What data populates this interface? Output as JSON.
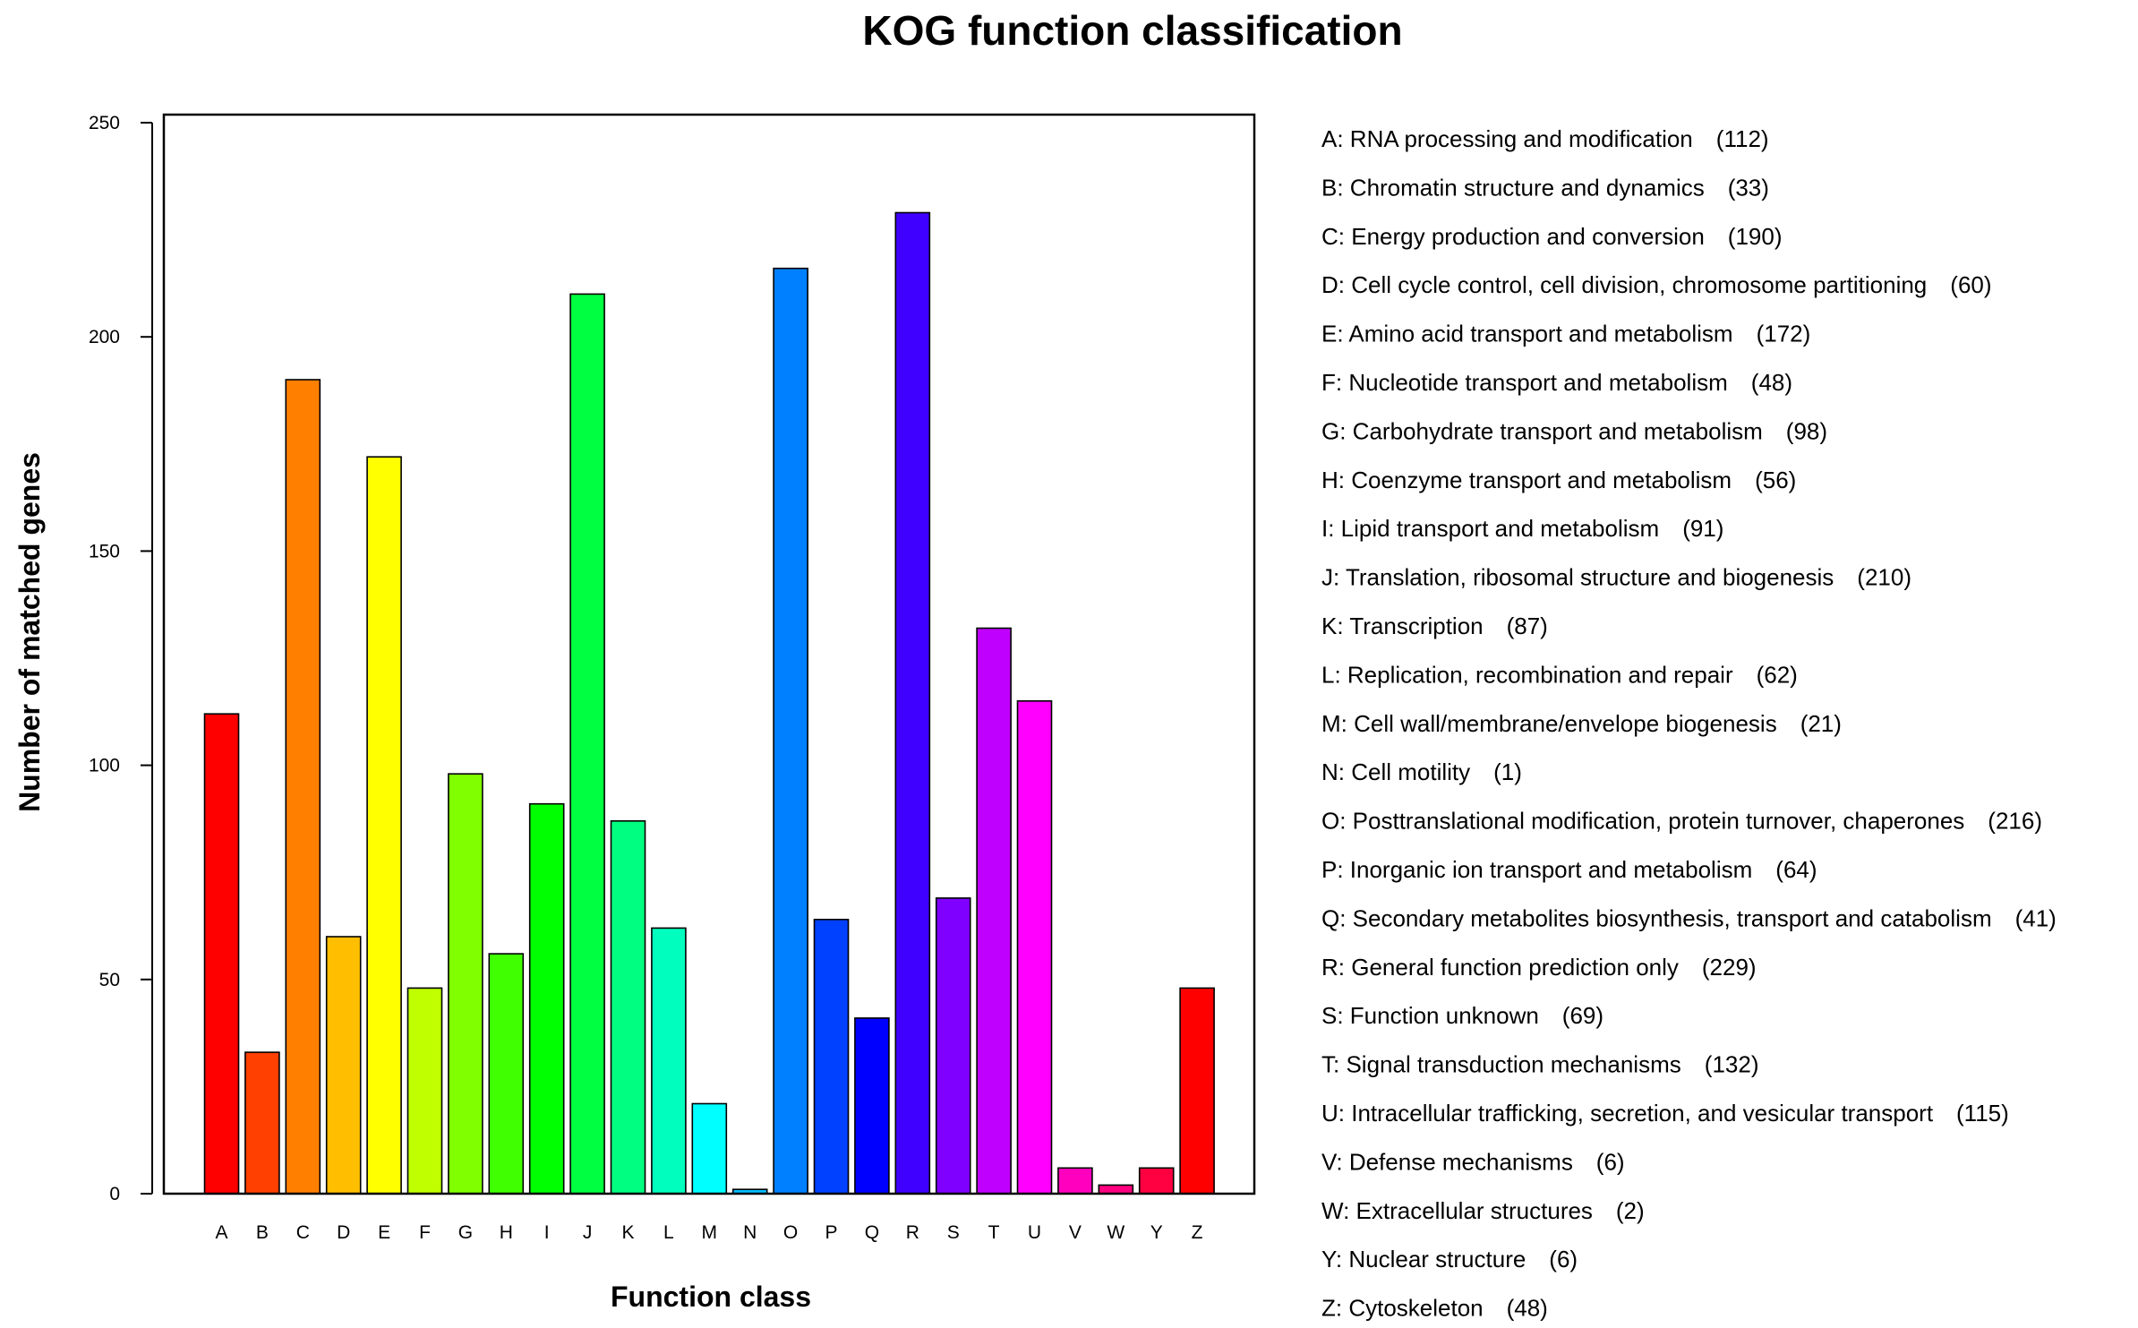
{
  "chart_data": {
    "type": "bar",
    "title": "KOG function classification",
    "xlabel": "Function class",
    "ylabel": "Number of matched genes",
    "ylim": [
      0,
      250
    ],
    "yticks": [
      0,
      50,
      100,
      150,
      200,
      250
    ],
    "grid": false,
    "legend_position": "right",
    "categories": [
      "A",
      "B",
      "C",
      "D",
      "E",
      "F",
      "G",
      "H",
      "I",
      "J",
      "K",
      "L",
      "M",
      "N",
      "O",
      "P",
      "Q",
      "R",
      "S",
      "T",
      "U",
      "V",
      "W",
      "Y",
      "Z"
    ],
    "values": [
      112,
      33,
      190,
      60,
      172,
      48,
      98,
      56,
      91,
      210,
      87,
      62,
      21,
      1,
      216,
      64,
      41,
      229,
      69,
      132,
      115,
      6,
      2,
      6,
      48
    ],
    "colors": [
      "#ff0000",
      "#ff4000",
      "#ff8000",
      "#ffbf00",
      "#ffff00",
      "#bfff00",
      "#80ff00",
      "#40ff00",
      "#00ff00",
      "#00ff40",
      "#00ff80",
      "#00ffbf",
      "#00ffff",
      "#00bfff",
      "#0080ff",
      "#0040ff",
      "#0000ff",
      "#4000ff",
      "#8000ff",
      "#bf00ff",
      "#ff00ff",
      "#ff00bf",
      "#ff0080",
      "#ff0040",
      "#ff0000"
    ],
    "legend": [
      {
        "label": "A: RNA processing and modification",
        "count": "(112)"
      },
      {
        "label": "B: Chromatin structure and dynamics",
        "count": "(33)"
      },
      {
        "label": "C: Energy production and conversion",
        "count": "(190)"
      },
      {
        "label": "D: Cell cycle control, cell division, chromosome partitioning",
        "count": "(60)"
      },
      {
        "label": "E: Amino acid transport and metabolism",
        "count": "(172)"
      },
      {
        "label": "F: Nucleotide transport and metabolism",
        "count": "(48)"
      },
      {
        "label": "G: Carbohydrate transport and metabolism",
        "count": "(98)"
      },
      {
        "label": "H: Coenzyme transport and metabolism",
        "count": "(56)"
      },
      {
        "label": "I: Lipid transport and metabolism",
        "count": "(91)"
      },
      {
        "label": "J: Translation, ribosomal structure and biogenesis",
        "count": "(210)"
      },
      {
        "label": "K: Transcription",
        "count": "(87)"
      },
      {
        "label": "L: Replication, recombination and repair",
        "count": "(62)"
      },
      {
        "label": "M: Cell wall/membrane/envelope biogenesis",
        "count": "(21)"
      },
      {
        "label": "N: Cell motility",
        "count": "(1)"
      },
      {
        "label": "O: Posttranslational modification, protein turnover, chaperones",
        "count": "(216)"
      },
      {
        "label": "P: Inorganic ion transport and metabolism",
        "count": "(64)"
      },
      {
        "label": "Q: Secondary metabolites biosynthesis, transport and catabolism",
        "count": "(41)"
      },
      {
        "label": "R: General function prediction only",
        "count": "(229)"
      },
      {
        "label": "S: Function unknown",
        "count": "(69)"
      },
      {
        "label": "T: Signal transduction mechanisms",
        "count": "(132)"
      },
      {
        "label": "U: Intracellular trafficking, secretion, and vesicular transport",
        "count": "(115)"
      },
      {
        "label": "V: Defense mechanisms",
        "count": "(6)"
      },
      {
        "label": "W: Extracellular structures",
        "count": "(2)"
      },
      {
        "label": "Y: Nuclear structure",
        "count": "(6)"
      },
      {
        "label": "Z: Cytoskeleton",
        "count": "(48)"
      }
    ]
  }
}
